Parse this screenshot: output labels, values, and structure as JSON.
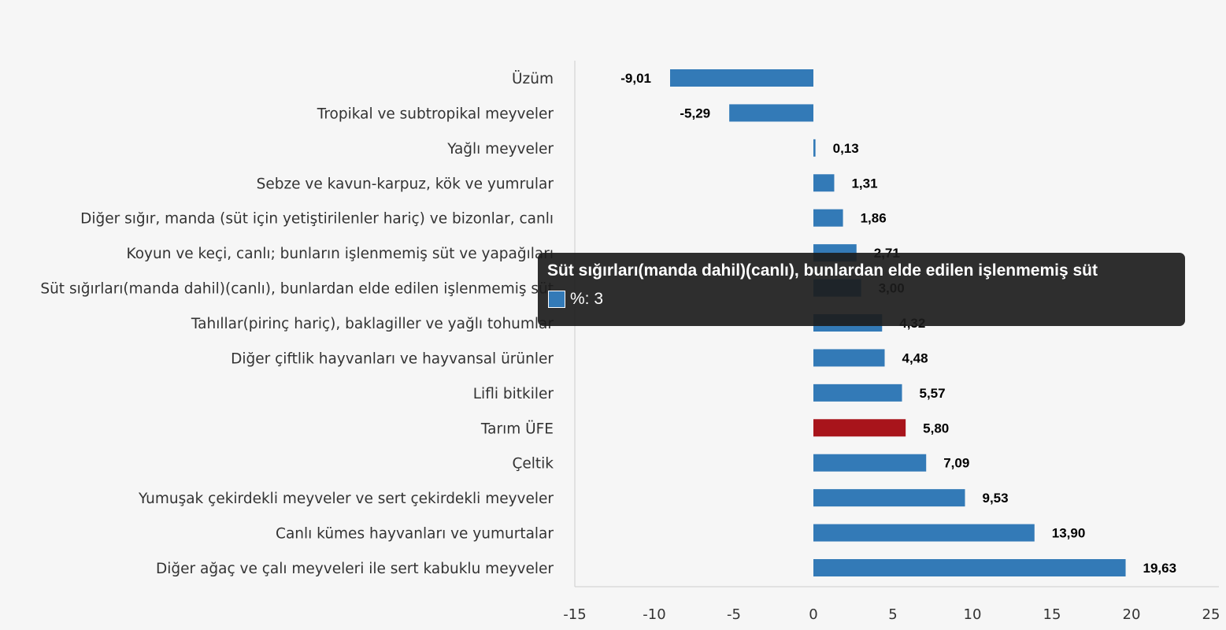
{
  "chart_data": {
    "type": "bar",
    "orientation": "horizontal",
    "categories": [
      "Üzüm",
      "Tropikal ve subtropikal meyveler",
      "Yağlı meyveler",
      "Sebze ve kavun-karpuz, kök ve yumrular",
      "Diğer sığır, manda (süt için yetiştirilenler hariç) ve bizonlar, canlı",
      "Koyun ve keçi, canlı; bunların işlenmemiş süt ve yapağıları",
      "Süt sığırları(manda dahil)(canlı), bunlardan elde edilen işlenmemiş süt",
      "Tahıllar(pirinç hariç), baklagiller ve yağlı tohumlar",
      "Diğer çiftlik hayvanları ve hayvansal ürünler",
      "Lifli bitkiler",
      "Tarım ÜFE",
      "Çeltik",
      "Yumuşak çekirdekli meyveler ve sert çekirdekli meyveler",
      "Canlı kümes hayvanları ve yumurtalar",
      "Diğer ağaç ve çalı meyveleri ile sert kabuklu meyveler"
    ],
    "values": [
      -9.01,
      -5.29,
      0.13,
      1.31,
      1.86,
      2.71,
      3.0,
      4.32,
      4.48,
      5.57,
      5.8,
      7.09,
      9.53,
      13.9,
      19.63
    ],
    "value_labels": [
      "-9,01",
      "-5,29",
      "0,13",
      "1,31",
      "1,86",
      "2,71",
      "3,00",
      "4,32",
      "4,48",
      "5,57",
      "5,80",
      "7,09",
      "9,53",
      "13,90",
      "19,63"
    ],
    "highlight_index": 10,
    "xlim": [
      -15,
      25
    ],
    "xticks": [
      "-15",
      "-10",
      "-5",
      "0",
      "5",
      "10",
      "15",
      "20",
      "25"
    ],
    "xtick_values": [
      -15,
      -10,
      -5,
      0,
      5,
      10,
      15,
      20,
      25
    ],
    "series_name": "%",
    "colors": {
      "bar": "#337ab7",
      "highlight": "#a8141b"
    },
    "grid": false
  },
  "tooltip": {
    "title": "Süt sığırları(manda dahil)(canlı), bunlardan elde edilen işlenmemiş süt",
    "value_text": "%: 3"
  }
}
